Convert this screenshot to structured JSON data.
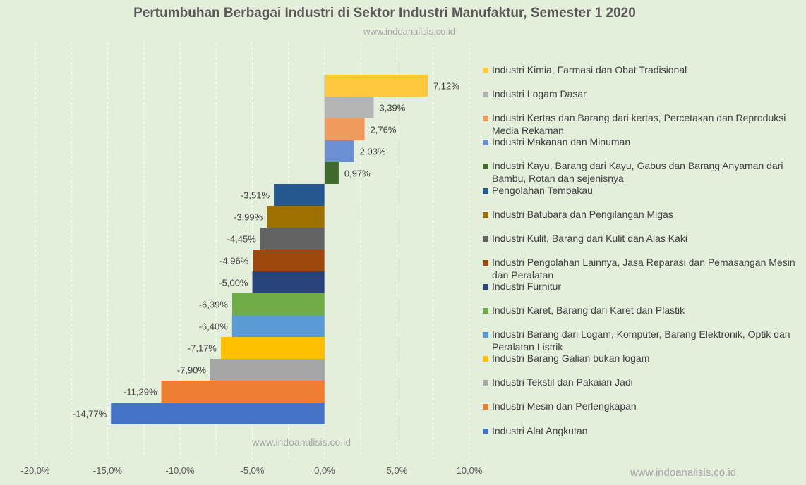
{
  "title": "Pertumbuhan Berbagai Industri di Sektor Industri Manufaktur, Semester 1 2020",
  "subtitle": "www.indoanalisis.co.id",
  "watermark_center": "www.indoanalisis.co.id",
  "watermark_corner": "www.indoanalisis.co.id",
  "chart_data": {
    "type": "bar",
    "orientation": "horizontal",
    "title": "Pertumbuhan Berbagai Industri di Sektor Industri Manufaktur, Semester 1 2020",
    "xlabel": "",
    "ylabel": "",
    "xlim": [
      -20,
      10
    ],
    "x_ticks": [
      "-20,0%",
      "-15,0%",
      "-10,0%",
      "-5,0%",
      "0,0%",
      "5,0%",
      "10,0%"
    ],
    "grid": "vertical dashed",
    "legend_position": "right",
    "categories": [
      "Industri Kimia, Farmasi dan Obat Tradisional",
      "Industri Logam Dasar",
      "Industri Kertas dan Barang dari kertas, Percetakan dan Reproduksi Media Rekaman",
      "Industri Makanan dan Minuman",
      "Industri Kayu, Barang dari Kayu, Gabus dan Barang Anyaman dari Bambu, Rotan dan sejenisnya",
      "Pengolahan Tembakau",
      "Industri Batubara dan Pengilangan Migas",
      "Industri Kulit, Barang dari Kulit dan Alas Kaki",
      "Industri Pengolahan Lainnya, Jasa Reparasi dan Pemasangan Mesin dan Peralatan",
      "Industri Furnitur",
      "Industri Karet, Barang dari Karet dan Plastik",
      "Industri Barang dari Logam, Komputer, Barang Elektronik, Optik dan Peralatan Listrik",
      "Industri Barang Galian bukan logam",
      "Industri Tekstil dan Pakaian Jadi",
      "Industri Mesin dan Perlengkapan",
      "Industri Alat Angkutan"
    ],
    "values": [
      7.12,
      3.39,
      2.76,
      2.03,
      0.97,
      -3.51,
      -3.99,
      -4.45,
      -4.96,
      -5.0,
      -6.39,
      -6.4,
      -7.17,
      -7.9,
      -11.29,
      -14.77
    ],
    "labels": [
      "7,12%",
      "3,39%",
      "2,76%",
      "2,03%",
      "0,97%",
      "-3,51%",
      "-3,99%",
      "-4,45%",
      "-4,96%",
      "-5,00%",
      "-6,39%",
      "-6,40%",
      "-7,17%",
      "-7,90%",
      "-11,29%",
      "-14,77%"
    ],
    "colors": [
      "#ffc83d",
      "#b4b4b4",
      "#f09a5e",
      "#6c8fd4",
      "#3e6a2c",
      "#25588f",
      "#9c7100",
      "#636363",
      "#9e480e",
      "#27437a",
      "#70ad47",
      "#5b9bd5",
      "#ffc000",
      "#a5a5a5",
      "#ed7d31",
      "#4472c4"
    ]
  }
}
